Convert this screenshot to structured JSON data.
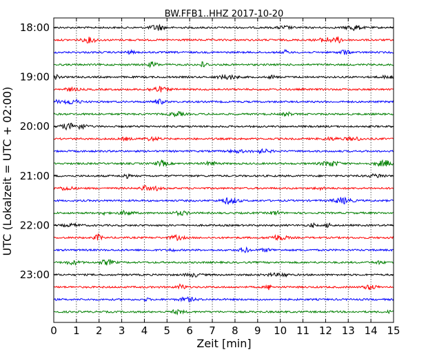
{
  "chart_data": {
    "type": "line",
    "title": "BW.FFB1..HHZ 2017-10-20",
    "xlabel": "Zeit  [min]",
    "ylabel": "UTC (Lokalzeit = UTC + 02:00)",
    "xlim": [
      0,
      15
    ],
    "xticks": [
      "0",
      "1",
      "2",
      "3",
      "4",
      "5",
      "6",
      "7",
      "8",
      "9",
      "10",
      "11",
      "12",
      "13",
      "14",
      "15"
    ],
    "yticks": [
      "18:00",
      "19:00",
      "20:00",
      "21:00",
      "22:00",
      "23:00"
    ],
    "grid": "x-dotted",
    "trace_colors": [
      "#000000",
      "#ff0000",
      "#0000ff",
      "#007f00"
    ],
    "trace_minutes_per_line": 15,
    "trace_count": 24,
    "start_hour": 18
  }
}
